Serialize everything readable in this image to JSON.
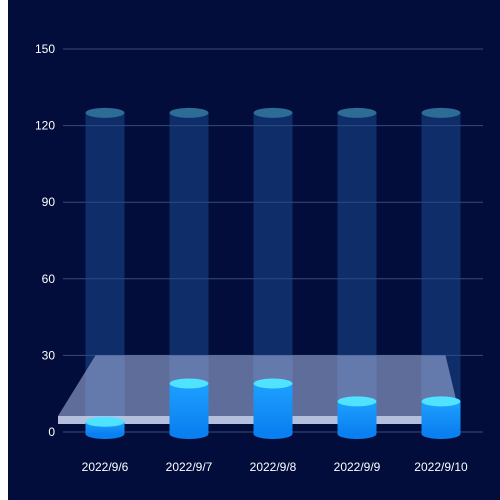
{
  "chart_data": {
    "type": "bar",
    "categories": [
      "2022/9/6",
      "2022/9/7",
      "2022/9/8",
      "2022/9/9",
      "2022/9/10"
    ],
    "values": [
      4,
      19,
      19,
      12,
      12
    ],
    "background_values": [
      125,
      125,
      125,
      125,
      125
    ],
    "ylim": [
      0,
      150
    ],
    "yticks": [
      0,
      30,
      60,
      90,
      120,
      150
    ],
    "grid": true,
    "title": "",
    "xlabel": "",
    "ylabel": "",
    "colors": {
      "background": "#020d3b",
      "bar_top": "#1ea0ff",
      "bar_bottom": "#0a7ff0",
      "bar_cap": "#4fe3ff",
      "bar_base": "#0a7ff0",
      "ghost_bar": "#1b4b8f",
      "ghost_cap": "#2d6c95",
      "platform": "#9aa9d6",
      "grid": "#3a4a78",
      "text": "#ffffff"
    }
  }
}
